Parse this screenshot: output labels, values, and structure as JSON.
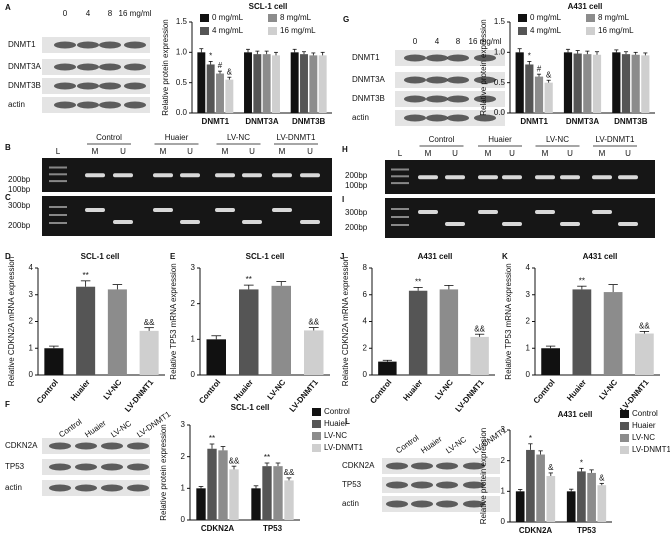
{
  "panel_letters": [
    "A",
    "B",
    "C",
    "D",
    "E",
    "F",
    "G",
    "H",
    "I",
    "J",
    "K",
    "L"
  ],
  "blots": [
    {
      "columns": [
        "0",
        "4",
        "8",
        "16 mg/ml"
      ],
      "rows": [
        "DNMT1",
        "DNMT3A",
        "DNMT3B",
        "actin"
      ]
    },
    {
      "columns": [
        "0",
        "4",
        "8",
        "16 mg/ml"
      ],
      "rows": [
        "DNMT1",
        "DNMT3A",
        "DNMT3B",
        "actin"
      ]
    },
    {
      "columns": [
        "Control",
        "Huaier",
        "LV-NC",
        "LV-DNMT1"
      ],
      "rows": [
        "CDKN2A",
        "TP53",
        "actin"
      ]
    },
    {
      "columns": [
        "Control",
        "Huaier",
        "LV-NC",
        "LV-DNMT1"
      ],
      "rows": [
        "CDKN2A",
        "TP53",
        "actin"
      ]
    }
  ],
  "gels": [
    {
      "groups": [
        "Control",
        "Huaier",
        "LV-NC",
        "LV-DNMT1"
      ],
      "lanes": [
        "L",
        "M",
        "U",
        "M",
        "U",
        "M",
        "U",
        "M",
        "U"
      ],
      "top_markers": [
        "200bp",
        "100bp"
      ],
      "bottom_markers": [
        "300bp",
        "200bp"
      ]
    },
    {
      "groups": [
        "Control",
        "Huaier",
        "LV-NC",
        "LV-DNMT1"
      ],
      "lanes": [
        "L",
        "M",
        "U",
        "M",
        "U",
        "M",
        "U",
        "M",
        "U"
      ],
      "top_markers": [
        "200bp",
        "100bp"
      ],
      "bottom_markers": [
        "300bp",
        "200bp"
      ]
    }
  ],
  "chart_data": [
    {
      "type": "bar",
      "title": "SCL-1 cell",
      "ylabel": "Relative protein expression",
      "categories": [
        "DNMT1",
        "DNMT3A",
        "DNMT3B"
      ],
      "series": [
        {
          "name": "0 mg/mL",
          "color": "#111111",
          "values": [
            1.0,
            1.0,
            1.0
          ],
          "errors": [
            0.06,
            0.05,
            0.05
          ],
          "annotations": [
            null,
            null,
            null
          ]
        },
        {
          "name": "4 mg/mL",
          "color": "#555555",
          "values": [
            0.8,
            0.97,
            0.97
          ],
          "errors": [
            0.05,
            0.05,
            0.04
          ],
          "annotations": [
            "*",
            null,
            null
          ]
        },
        {
          "name": "8 mg/mL",
          "color": "#8c8c8c",
          "values": [
            0.65,
            0.97,
            0.95
          ],
          "errors": [
            0.04,
            0.05,
            0.04
          ],
          "annotations": [
            "#",
            null,
            null
          ]
        },
        {
          "name": "16 mg/mL",
          "color": "#cfcfcf",
          "values": [
            0.55,
            0.95,
            0.95
          ],
          "errors": [
            0.04,
            0.05,
            0.05
          ],
          "annotations": [
            "&",
            null,
            null
          ]
        }
      ],
      "ylim": [
        0,
        1.5
      ],
      "yticks": [
        {
          "value": 0,
          "label": "0.0"
        },
        {
          "value": 0.5,
          "label": "0.5"
        },
        {
          "value": 1,
          "label": "1.0"
        },
        {
          "value": 1.5,
          "label": "1.5"
        }
      ],
      "legend": "upper right"
    },
    {
      "type": "bar",
      "title": "A431 cell",
      "ylabel": "Relative protein expression",
      "categories": [
        "DNMT1",
        "DNMT3A",
        "DNMT3B"
      ],
      "series": [
        {
          "name": "0 mg/mL",
          "color": "#111111",
          "values": [
            1.0,
            1.0,
            1.0
          ],
          "errors": [
            0.06,
            0.05,
            0.04
          ],
          "annotations": [
            null,
            null,
            null
          ]
        },
        {
          "name": "4 mg/mL",
          "color": "#555555",
          "values": [
            0.8,
            0.98,
            0.97
          ],
          "errors": [
            0.05,
            0.05,
            0.04
          ],
          "annotations": [
            "*",
            null,
            null
          ]
        },
        {
          "name": "8 mg/mL",
          "color": "#8c8c8c",
          "values": [
            0.6,
            0.97,
            0.96
          ],
          "errors": [
            0.04,
            0.05,
            0.04
          ],
          "annotations": [
            "#",
            null,
            null
          ]
        },
        {
          "name": "16 mg/mL",
          "color": "#cfcfcf",
          "values": [
            0.5,
            0.96,
            0.95
          ],
          "errors": [
            0.04,
            0.05,
            0.04
          ],
          "annotations": [
            "&",
            null,
            null
          ]
        }
      ],
      "ylim": [
        0,
        1.5
      ],
      "yticks": [
        {
          "value": 0,
          "label": "0.0"
        },
        {
          "value": 0.5,
          "label": "0.5"
        },
        {
          "value": 1,
          "label": "1.0"
        },
        {
          "value": 1.5,
          "label": "1.5"
        }
      ],
      "legend": "upper right"
    },
    {
      "type": "bar",
      "title": "SCL-1 cell",
      "ylabel": "Relative CDKN2A mRNA expression",
      "categories": [
        "Control",
        "Huaier",
        "LV-NC",
        "LV-DNMT1"
      ],
      "values": [
        1.0,
        3.3,
        3.2,
        1.65
      ],
      "errors": [
        0.08,
        0.22,
        0.18,
        0.12
      ],
      "annotations": [
        null,
        "**",
        null,
        "&&"
      ],
      "colors": [
        "#111111",
        "#555555",
        "#8c8c8c",
        "#cfcfcf"
      ],
      "ylim": [
        0,
        4
      ],
      "yticks": [
        0,
        1,
        2,
        3,
        4
      ]
    },
    {
      "type": "bar",
      "title": "SCL-1 cell",
      "ylabel": "Relative TP53 mRNA expression",
      "categories": [
        "Control",
        "Huaier",
        "LV-NC",
        "LV-DNMT1"
      ],
      "values": [
        1.0,
        2.4,
        2.5,
        1.25
      ],
      "errors": [
        0.1,
        0.12,
        0.12,
        0.08
      ],
      "annotations": [
        null,
        "**",
        null,
        "&&"
      ],
      "colors": [
        "#111111",
        "#555555",
        "#8c8c8c",
        "#cfcfcf"
      ],
      "ylim": [
        0,
        3
      ],
      "yticks": [
        0,
        1,
        2,
        3
      ]
    },
    {
      "type": "bar",
      "title": "A431 cell",
      "ylabel": "Relative CDKN2A mRNA expression",
      "categories": [
        "Control",
        "Huaier",
        "LV-NC",
        "LV-DNMT1"
      ],
      "values": [
        1.0,
        6.3,
        6.4,
        2.85
      ],
      "errors": [
        0.1,
        0.25,
        0.3,
        0.2
      ],
      "annotations": [
        null,
        "**",
        null,
        "&&"
      ],
      "colors": [
        "#111111",
        "#555555",
        "#8c8c8c",
        "#cfcfcf"
      ],
      "ylim": [
        0,
        8
      ],
      "yticks": [
        0,
        2,
        4,
        6,
        8
      ]
    },
    {
      "type": "bar",
      "title": "A431 cell",
      "ylabel": "Relative TP53 mRNA expression",
      "categories": [
        "Control",
        "Huaier",
        "LV-NC",
        "LV-DNMT1"
      ],
      "values": [
        1.0,
        3.2,
        3.1,
        1.55
      ],
      "errors": [
        0.08,
        0.12,
        0.28,
        0.08
      ],
      "annotations": [
        null,
        "**",
        null,
        "&&"
      ],
      "colors": [
        "#111111",
        "#555555",
        "#8c8c8c",
        "#cfcfcf"
      ],
      "ylim": [
        0,
        4
      ],
      "yticks": [
        0,
        1,
        2,
        3,
        4
      ]
    },
    {
      "type": "bar",
      "title": "SCL-1 cell",
      "ylabel": "Relative protein expression",
      "categories": [
        "CDKN2A",
        "TP53"
      ],
      "series": [
        {
          "name": "Control",
          "color": "#111111",
          "values": [
            1.0,
            1.0
          ],
          "errors": [
            0.06,
            0.08
          ],
          "annotations": [
            null,
            null
          ]
        },
        {
          "name": "Huaier",
          "color": "#555555",
          "values": [
            2.25,
            1.7
          ],
          "errors": [
            0.15,
            0.1
          ],
          "annotations": [
            "**",
            "**"
          ]
        },
        {
          "name": "LV-NC",
          "color": "#8c8c8c",
          "values": [
            2.2,
            1.7
          ],
          "errors": [
            0.12,
            0.1
          ],
          "annotations": [
            null,
            null
          ]
        },
        {
          "name": "LV-DNMT1",
          "color": "#cfcfcf",
          "values": [
            1.6,
            1.25
          ],
          "errors": [
            0.1,
            0.08
          ],
          "annotations": [
            "&&",
            "&&"
          ]
        }
      ],
      "ylim": [
        0,
        3
      ],
      "yticks": [
        0,
        1,
        2,
        3
      ],
      "legend": "right"
    },
    {
      "type": "bar",
      "title": "A431 cell",
      "ylabel": "Relative protein expression",
      "categories": [
        "CDKN2A",
        "TP53"
      ],
      "series": [
        {
          "name": "Control",
          "color": "#111111",
          "values": [
            1.0,
            1.0
          ],
          "errors": [
            0.06,
            0.07
          ],
          "annotations": [
            null,
            null
          ]
        },
        {
          "name": "Huaier",
          "color": "#555555",
          "values": [
            2.35,
            1.65
          ],
          "errors": [
            0.2,
            0.1
          ],
          "annotations": [
            "*",
            "*"
          ]
        },
        {
          "name": "LV-NC",
          "color": "#8c8c8c",
          "values": [
            2.2,
            1.6
          ],
          "errors": [
            0.12,
            0.1
          ],
          "annotations": [
            null,
            null
          ]
        },
        {
          "name": "LV-DNMT1",
          "color": "#cfcfcf",
          "values": [
            1.5,
            1.2
          ],
          "errors": [
            0.1,
            0.06
          ],
          "annotations": [
            "&",
            "&"
          ]
        }
      ],
      "ylim": [
        0,
        3
      ],
      "yticks": [
        0,
        1,
        2,
        3
      ],
      "legend": "right"
    }
  ]
}
